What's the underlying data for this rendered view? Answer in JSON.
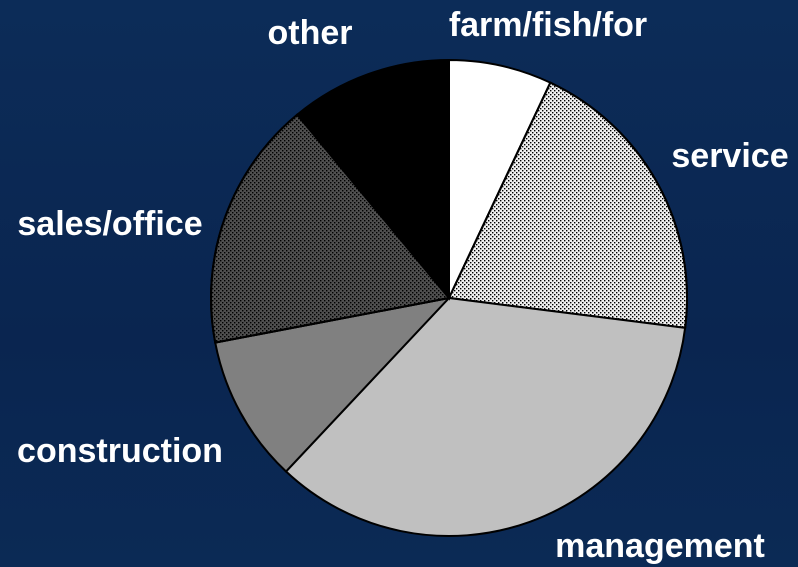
{
  "chart_data": {
    "type": "pie",
    "categories": [
      "farm/fish/for",
      "service",
      "management",
      "construction",
      "sales/office",
      "other"
    ],
    "values": [
      7,
      20,
      35,
      10,
      17,
      11
    ],
    "colors": [
      "#ffffff",
      "#f0f0f0",
      "#c0c0c0",
      "#808080",
      "#505050",
      "#000000"
    ],
    "patterns": [
      "solid",
      "dots",
      "solid",
      "solid",
      "dots",
      "solid"
    ],
    "start_angle": "top",
    "direction": "clockwise"
  }
}
